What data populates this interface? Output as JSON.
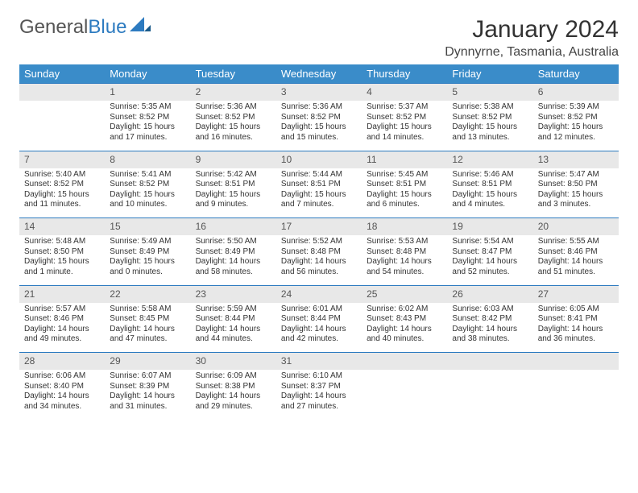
{
  "logo": {
    "text1": "General",
    "text2": "Blue"
  },
  "title": "January 2024",
  "location": "Dynnyrne, Tasmania, Australia",
  "colors": {
    "header_bg": "#3a8cc9",
    "header_text": "#ffffff",
    "daynum_bg": "#e8e8e8",
    "border": "#2d7bc0",
    "logo_blue": "#2d7bc0"
  },
  "weekdays": [
    "Sunday",
    "Monday",
    "Tuesday",
    "Wednesday",
    "Thursday",
    "Friday",
    "Saturday"
  ],
  "weeks": [
    [
      null,
      {
        "d": "1",
        "sr": "Sunrise: 5:35 AM",
        "ss": "Sunset: 8:52 PM",
        "dl1": "Daylight: 15 hours",
        "dl2": "and 17 minutes."
      },
      {
        "d": "2",
        "sr": "Sunrise: 5:36 AM",
        "ss": "Sunset: 8:52 PM",
        "dl1": "Daylight: 15 hours",
        "dl2": "and 16 minutes."
      },
      {
        "d": "3",
        "sr": "Sunrise: 5:36 AM",
        "ss": "Sunset: 8:52 PM",
        "dl1": "Daylight: 15 hours",
        "dl2": "and 15 minutes."
      },
      {
        "d": "4",
        "sr": "Sunrise: 5:37 AM",
        "ss": "Sunset: 8:52 PM",
        "dl1": "Daylight: 15 hours",
        "dl2": "and 14 minutes."
      },
      {
        "d": "5",
        "sr": "Sunrise: 5:38 AM",
        "ss": "Sunset: 8:52 PM",
        "dl1": "Daylight: 15 hours",
        "dl2": "and 13 minutes."
      },
      {
        "d": "6",
        "sr": "Sunrise: 5:39 AM",
        "ss": "Sunset: 8:52 PM",
        "dl1": "Daylight: 15 hours",
        "dl2": "and 12 minutes."
      }
    ],
    [
      {
        "d": "7",
        "sr": "Sunrise: 5:40 AM",
        "ss": "Sunset: 8:52 PM",
        "dl1": "Daylight: 15 hours",
        "dl2": "and 11 minutes."
      },
      {
        "d": "8",
        "sr": "Sunrise: 5:41 AM",
        "ss": "Sunset: 8:52 PM",
        "dl1": "Daylight: 15 hours",
        "dl2": "and 10 minutes."
      },
      {
        "d": "9",
        "sr": "Sunrise: 5:42 AM",
        "ss": "Sunset: 8:51 PM",
        "dl1": "Daylight: 15 hours",
        "dl2": "and 9 minutes."
      },
      {
        "d": "10",
        "sr": "Sunrise: 5:44 AM",
        "ss": "Sunset: 8:51 PM",
        "dl1": "Daylight: 15 hours",
        "dl2": "and 7 minutes."
      },
      {
        "d": "11",
        "sr": "Sunrise: 5:45 AM",
        "ss": "Sunset: 8:51 PM",
        "dl1": "Daylight: 15 hours",
        "dl2": "and 6 minutes."
      },
      {
        "d": "12",
        "sr": "Sunrise: 5:46 AM",
        "ss": "Sunset: 8:51 PM",
        "dl1": "Daylight: 15 hours",
        "dl2": "and 4 minutes."
      },
      {
        "d": "13",
        "sr": "Sunrise: 5:47 AM",
        "ss": "Sunset: 8:50 PM",
        "dl1": "Daylight: 15 hours",
        "dl2": "and 3 minutes."
      }
    ],
    [
      {
        "d": "14",
        "sr": "Sunrise: 5:48 AM",
        "ss": "Sunset: 8:50 PM",
        "dl1": "Daylight: 15 hours",
        "dl2": "and 1 minute."
      },
      {
        "d": "15",
        "sr": "Sunrise: 5:49 AM",
        "ss": "Sunset: 8:49 PM",
        "dl1": "Daylight: 15 hours",
        "dl2": "and 0 minutes."
      },
      {
        "d": "16",
        "sr": "Sunrise: 5:50 AM",
        "ss": "Sunset: 8:49 PM",
        "dl1": "Daylight: 14 hours",
        "dl2": "and 58 minutes."
      },
      {
        "d": "17",
        "sr": "Sunrise: 5:52 AM",
        "ss": "Sunset: 8:48 PM",
        "dl1": "Daylight: 14 hours",
        "dl2": "and 56 minutes."
      },
      {
        "d": "18",
        "sr": "Sunrise: 5:53 AM",
        "ss": "Sunset: 8:48 PM",
        "dl1": "Daylight: 14 hours",
        "dl2": "and 54 minutes."
      },
      {
        "d": "19",
        "sr": "Sunrise: 5:54 AM",
        "ss": "Sunset: 8:47 PM",
        "dl1": "Daylight: 14 hours",
        "dl2": "and 52 minutes."
      },
      {
        "d": "20",
        "sr": "Sunrise: 5:55 AM",
        "ss": "Sunset: 8:46 PM",
        "dl1": "Daylight: 14 hours",
        "dl2": "and 51 minutes."
      }
    ],
    [
      {
        "d": "21",
        "sr": "Sunrise: 5:57 AM",
        "ss": "Sunset: 8:46 PM",
        "dl1": "Daylight: 14 hours",
        "dl2": "and 49 minutes."
      },
      {
        "d": "22",
        "sr": "Sunrise: 5:58 AM",
        "ss": "Sunset: 8:45 PM",
        "dl1": "Daylight: 14 hours",
        "dl2": "and 47 minutes."
      },
      {
        "d": "23",
        "sr": "Sunrise: 5:59 AM",
        "ss": "Sunset: 8:44 PM",
        "dl1": "Daylight: 14 hours",
        "dl2": "and 44 minutes."
      },
      {
        "d": "24",
        "sr": "Sunrise: 6:01 AM",
        "ss": "Sunset: 8:44 PM",
        "dl1": "Daylight: 14 hours",
        "dl2": "and 42 minutes."
      },
      {
        "d": "25",
        "sr": "Sunrise: 6:02 AM",
        "ss": "Sunset: 8:43 PM",
        "dl1": "Daylight: 14 hours",
        "dl2": "and 40 minutes."
      },
      {
        "d": "26",
        "sr": "Sunrise: 6:03 AM",
        "ss": "Sunset: 8:42 PM",
        "dl1": "Daylight: 14 hours",
        "dl2": "and 38 minutes."
      },
      {
        "d": "27",
        "sr": "Sunrise: 6:05 AM",
        "ss": "Sunset: 8:41 PM",
        "dl1": "Daylight: 14 hours",
        "dl2": "and 36 minutes."
      }
    ],
    [
      {
        "d": "28",
        "sr": "Sunrise: 6:06 AM",
        "ss": "Sunset: 8:40 PM",
        "dl1": "Daylight: 14 hours",
        "dl2": "and 34 minutes."
      },
      {
        "d": "29",
        "sr": "Sunrise: 6:07 AM",
        "ss": "Sunset: 8:39 PM",
        "dl1": "Daylight: 14 hours",
        "dl2": "and 31 minutes."
      },
      {
        "d": "30",
        "sr": "Sunrise: 6:09 AM",
        "ss": "Sunset: 8:38 PM",
        "dl1": "Daylight: 14 hours",
        "dl2": "and 29 minutes."
      },
      {
        "d": "31",
        "sr": "Sunrise: 6:10 AM",
        "ss": "Sunset: 8:37 PM",
        "dl1": "Daylight: 14 hours",
        "dl2": "and 27 minutes."
      },
      null,
      null,
      null
    ]
  ]
}
